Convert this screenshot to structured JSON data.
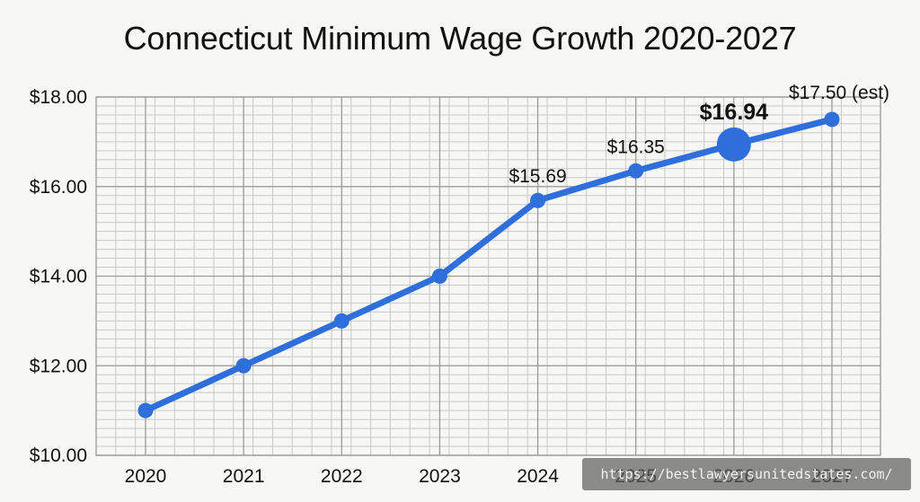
{
  "chart_data": {
    "type": "line",
    "title": "Connecticut Minimum Wage Growth 2020-2027",
    "categories": [
      "2020",
      "2021",
      "2022",
      "2023",
      "2024",
      "2025",
      "2026",
      "2027"
    ],
    "series": [
      {
        "values": [
          11.0,
          12.0,
          13.0,
          14.0,
          15.69,
          16.35,
          16.94,
          17.5
        ]
      }
    ],
    "point_labels": [
      "",
      "",
      "",
      "",
      "$15.69",
      "$16.35",
      "$16.94",
      "$17.50 (est)"
    ],
    "highlight_index": 6,
    "y_tick_labels": [
      "$10.00",
      "$12.00",
      "$14.00",
      "$16.00",
      "$18.00"
    ],
    "y_ticks": [
      10,
      12,
      14,
      16,
      18
    ],
    "ylim": [
      10,
      18
    ],
    "xlabel": "",
    "ylabel": "",
    "grid": true,
    "line_color": "#2f6fdb"
  },
  "watermark": "https://bestlawyersunitedstates.com/"
}
